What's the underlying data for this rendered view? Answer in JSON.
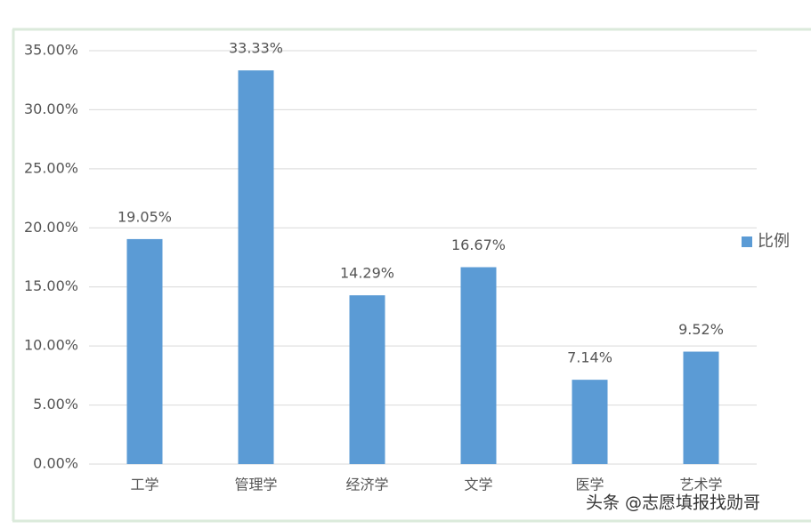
{
  "chart_data": {
    "type": "bar",
    "categories": [
      "工学",
      "管理学",
      "经济学",
      "文学",
      "医学",
      "艺术学"
    ],
    "series": [
      {
        "name": "比例",
        "color": "#5b9bd5",
        "values": [
          19.05,
          33.33,
          14.29,
          16.67,
          7.14,
          9.52
        ],
        "value_labels": [
          "19.05%",
          "33.33%",
          "14.29%",
          "16.67%",
          "7.14%",
          "9.52%"
        ]
      }
    ],
    "ylim": [
      0,
      35
    ],
    "yticks": [
      {
        "value": 0,
        "label": "0.00%"
      },
      {
        "value": 5,
        "label": "5.00%"
      },
      {
        "value": 10,
        "label": "10.00%"
      },
      {
        "value": 15,
        "label": "15.00%"
      },
      {
        "value": 20,
        "label": "20.00%"
      },
      {
        "value": 25,
        "label": "25.00%"
      },
      {
        "value": 30,
        "label": "30.00%"
      },
      {
        "value": 35,
        "label": "35.00%"
      }
    ],
    "grid": true,
    "legend": "right",
    "watermark": "头条 @志愿填报找勋哥"
  }
}
